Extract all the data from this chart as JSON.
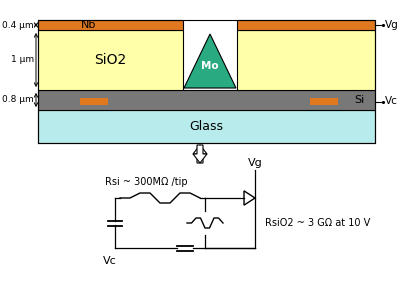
{
  "bg_color": "#ffffff",
  "glass_color": "#b8ecec",
  "si_color": "#787878",
  "sio2_color": "#ffffaa",
  "nb_color": "#e07820",
  "mo_color": "#2aaa80",
  "glass_label": "Glass",
  "si_label": "Si",
  "sio2_label": "SiO2",
  "nb_label": "Nb",
  "mo_label": "Mo",
  "vg_label": "Vg",
  "vc_label": "Vc",
  "dim1": "0.4 μm",
  "dim2": "1 μm",
  "dim3": "0.8 μm",
  "rsi_label": "Rsi ~ 300MΩ /tip",
  "rsio2_label": "RsiO2 ~ 3 GΩ at 10 V",
  "circuit_vg": "Vg",
  "circuit_vc": "Vc"
}
